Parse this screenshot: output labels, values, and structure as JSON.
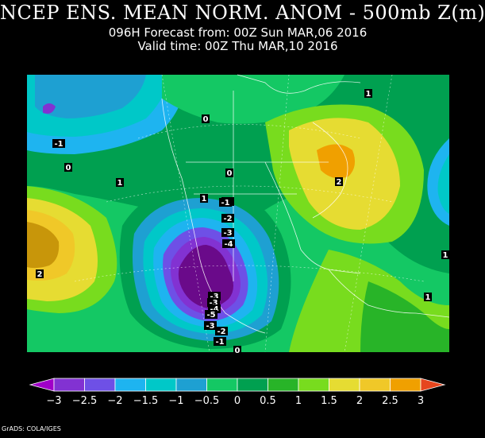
{
  "header": {
    "title": "NCEP ENS. MEAN NORM. ANOM - 500mb Z(m)",
    "forecast_line": "096H Forecast from: 00Z Sun MAR,06 2016",
    "valid_line": "Valid time: 00Z Thu MAR,10 2016"
  },
  "map": {
    "contour_labels": [
      "-1",
      "0",
      "1",
      "1",
      "-1",
      "0",
      "1",
      "2",
      "-1",
      "-2",
      "-3",
      "-4",
      "2",
      "-3",
      "-3",
      "-4",
      "-5",
      "-3",
      "-2",
      "-1",
      "0",
      "1",
      "1",
      "0"
    ]
  },
  "colorbar": {
    "ticks": [
      "-3",
      "-2.5",
      "-2",
      "-1.5",
      "-1",
      "-0.5",
      "0",
      "0.5",
      "1",
      "1.5",
      "2",
      "2.5",
      "3"
    ],
    "colors": [
      "#a000c8",
      "#8232d2",
      "#6e50e6",
      "#1eb4f0",
      "#00c8c8",
      "#1ea0d2",
      "#14c864",
      "#00a050",
      "#28b428",
      "#78dc1e",
      "#e6dc32",
      "#f0c828",
      "#f0a000",
      "#e6461e"
    ]
  },
  "credit": "GrADS: COLA/IGES"
}
